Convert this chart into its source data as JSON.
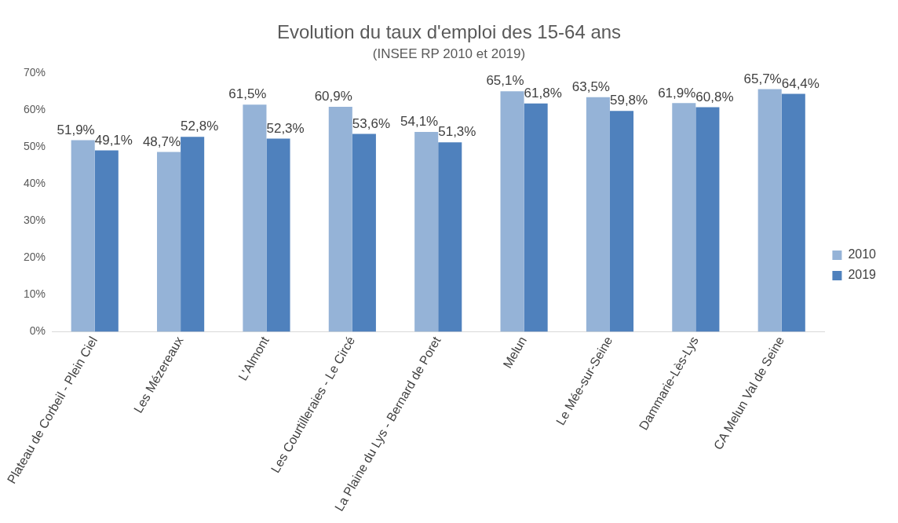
{
  "chart_data": {
    "type": "bar",
    "title": "Evolution du taux d'emploi des 15-64 ans",
    "subtitle": "(INSEE RP 2010 et 2019)",
    "categories": [
      "Plateau de Corbeil - Plein Ciel",
      "Les Mézereaux",
      "L'Almont",
      "Les Courtilleraies - Le Circé",
      "La Plaine du Lys - Bernard de Poret",
      "Melun",
      "Le Mée-sur-Seine",
      "Dammarie-Lès-Lys",
      "CA Melun Val de Seine"
    ],
    "series": [
      {
        "name": "2010",
        "color": "#95b3d7",
        "values": [
          51.9,
          48.7,
          61.5,
          60.9,
          54.1,
          65.1,
          63.5,
          61.9,
          65.7
        ],
        "value_labels": [
          "51,9%",
          "48,7%",
          "61,5%",
          "60,9%",
          "54,1%",
          "65,1%",
          "63,5%",
          "61,9%",
          "65,7%"
        ]
      },
      {
        "name": "2019",
        "color": "#4f81bd",
        "values": [
          49.1,
          52.8,
          52.3,
          53.6,
          51.3,
          61.8,
          59.8,
          60.8,
          64.4
        ],
        "value_labels": [
          "49,1%",
          "52,8%",
          "52,3%",
          "53,6%",
          "51,3%",
          "61,8%",
          "59,8%",
          "60,8%",
          "64,4%"
        ]
      }
    ],
    "ylim": [
      0,
      70
    ],
    "yticks": [
      {
        "value": 0,
        "label": "0%"
      },
      {
        "value": 10,
        "label": "10%"
      },
      {
        "value": 20,
        "label": "20%"
      },
      {
        "value": 30,
        "label": "30%"
      },
      {
        "value": 40,
        "label": "40%"
      },
      {
        "value": 50,
        "label": "50%"
      },
      {
        "value": 60,
        "label": "60%"
      },
      {
        "value": 70,
        "label": "70%"
      }
    ],
    "grid": false,
    "legend": "right"
  }
}
